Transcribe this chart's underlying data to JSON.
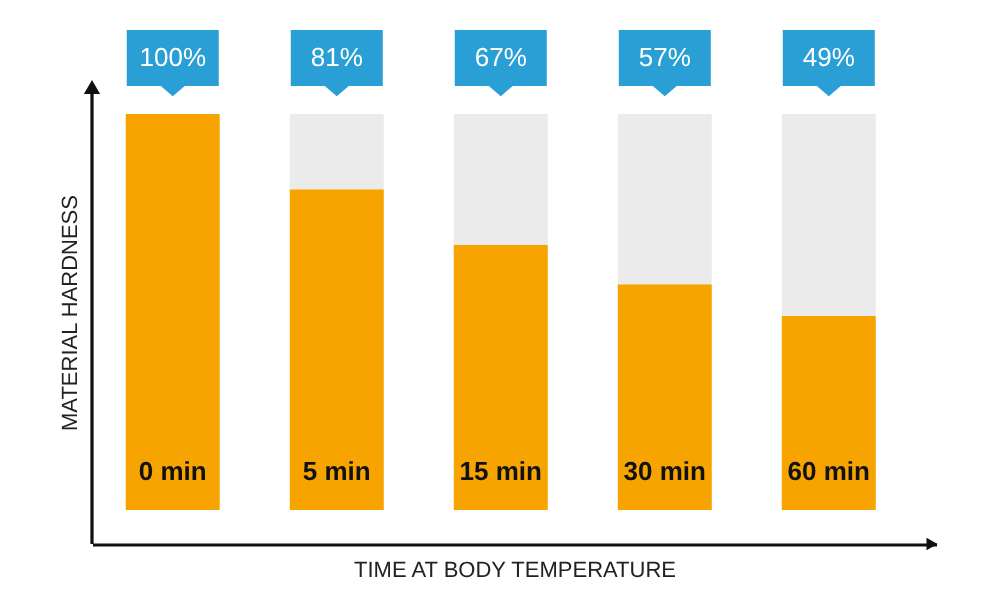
{
  "chart_data": {
    "type": "bar",
    "xlabel": "TIME AT BODY TEMPERATURE",
    "ylabel": "MATERIAL HARDNESS",
    "categories": [
      "0 min",
      "5 min",
      "15 min",
      "30 min",
      "60 min"
    ],
    "stacked": true,
    "grid": false,
    "tick_labels": "x",
    "series": [
      {
        "color": "#f7a400",
        "values": [
          100,
          81,
          67,
          57,
          49
        ],
        "value_labels": [
          "100%",
          "81%",
          "67%",
          "57%",
          "49%"
        ]
      },
      {
        "color": "#ebebeb",
        "values": [
          0,
          19,
          33,
          43,
          51
        ]
      }
    ]
  }
}
